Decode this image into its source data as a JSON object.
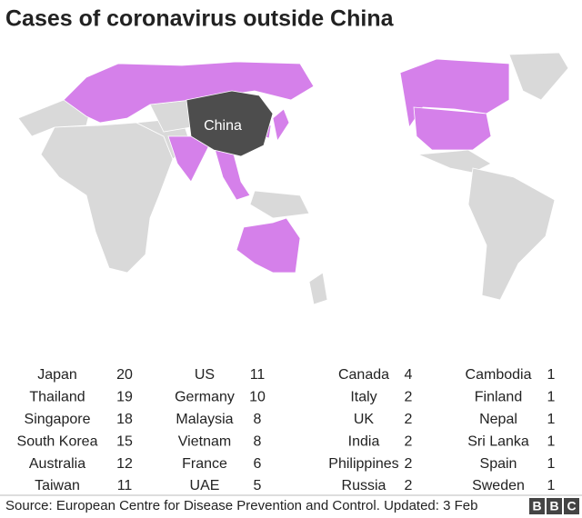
{
  "title": "Cases of coronavirus outside China",
  "map": {
    "label": "China"
  },
  "table": {
    "columns": [
      [
        [
          "Japan",
          20
        ],
        [
          "Thailand",
          19
        ],
        [
          "Singapore",
          18
        ],
        [
          "South Korea",
          15
        ],
        [
          "Australia",
          12
        ],
        [
          "Taiwan",
          11
        ]
      ],
      [
        [
          "US",
          11
        ],
        [
          "Germany",
          10
        ],
        [
          "Malaysia",
          8
        ],
        [
          "Vietnam",
          8
        ],
        [
          "France",
          6
        ],
        [
          "UAE",
          5
        ]
      ],
      [
        [
          "Canada",
          4
        ],
        [
          "Italy",
          2
        ],
        [
          "UK",
          2
        ],
        [
          "India",
          2
        ],
        [
          "Philippines",
          2
        ],
        [
          "Russia",
          2
        ]
      ],
      [
        [
          "Cambodia",
          1
        ],
        [
          "Finland",
          1
        ],
        [
          "Nepal",
          1
        ],
        [
          "Sri Lanka",
          1
        ],
        [
          "Spain",
          1
        ],
        [
          "Sweden",
          1
        ]
      ]
    ]
  },
  "source": "Source: European Centre for Disease Prevention and Control. Updated: 3 Feb",
  "logo": [
    "B",
    "B",
    "C"
  ]
}
